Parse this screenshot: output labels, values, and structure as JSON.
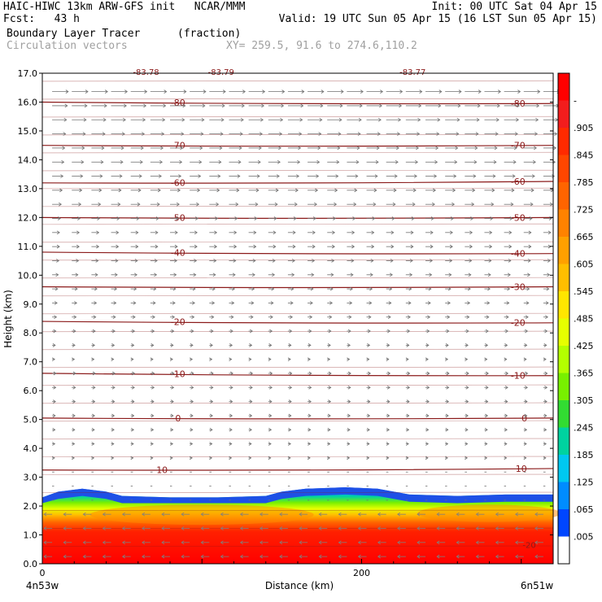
{
  "header": {
    "line1_left": "HAIC-HIWC 13km ARW-GFS init   NCAR/MMM",
    "line1_right": "Init: 00 UTC Sat 04 Apr 15",
    "line2_left": "Fcst:   43 h",
    "line2_right": "Valid: 19 UTC Sun 05 Apr 15 (16 LST Sun 05 Apr 15)",
    "line3_left": "Boundary Layer Tracer",
    "line3_mid": "(fraction)",
    "line4_left": "Circulation vectors",
    "line4_mid": "XY= 259.5, 91.6 to 274.6,110.2"
  },
  "chart_data": {
    "type": "heatmap",
    "title": "Boundary Layer Tracer",
    "units": "(fraction)",
    "xlabel": "Distance (km)",
    "ylabel": "Height (km)",
    "xlim": [
      0,
      320
    ],
    "ylim": [
      0,
      17
    ],
    "x_ticks": [
      {
        "value": 0,
        "label": "0"
      },
      {
        "value": 200,
        "label": "200"
      }
    ],
    "x_end_labels": {
      "left": "4n53w",
      "right": "6n51w"
    },
    "y_ticks": [
      0,
      1,
      2,
      3,
      4,
      5,
      6,
      7,
      8,
      9,
      10,
      11,
      12,
      13,
      14,
      15,
      16,
      17
    ],
    "y_tick_labels": [
      "0.0",
      "1.0",
      "2.0",
      "3.0",
      "4.0",
      "5.0",
      "6.0",
      "7.0",
      "8.0",
      "9.0",
      "10.0",
      "11.0",
      "12.0",
      "13.0",
      "14.0",
      "15.0",
      "16.0",
      "17.0"
    ],
    "colorbar": {
      "labels": [
        "-",
        ".905",
        ".845",
        ".785",
        ".725",
        ".665",
        ".605",
        ".545",
        ".485",
        ".425",
        ".365",
        ".305",
        ".245",
        ".185",
        ".125",
        ".065",
        ".005"
      ],
      "colors": [
        "#ff0000",
        "#f21d1d",
        "#ff2a00",
        "#ff4600",
        "#ff6400",
        "#ff8200",
        "#ffa000",
        "#ffbe00",
        "#ffe600",
        "#e6ff00",
        "#b4ff00",
        "#78f000",
        "#32dc32",
        "#00d2a0",
        "#00c8f0",
        "#008cff",
        "#0046ff",
        "#ffffff"
      ]
    },
    "tracer_profile": [
      {
        "x": 0,
        "top": 2.3
      },
      {
        "x": 10,
        "top": 2.5
      },
      {
        "x": 25,
        "top": 2.6
      },
      {
        "x": 40,
        "top": 2.5
      },
      {
        "x": 50,
        "top": 2.35
      },
      {
        "x": 80,
        "top": 2.3
      },
      {
        "x": 110,
        "top": 2.3
      },
      {
        "x": 140,
        "top": 2.35
      },
      {
        "x": 150,
        "top": 2.5
      },
      {
        "x": 165,
        "top": 2.6
      },
      {
        "x": 190,
        "top": 2.65
      },
      {
        "x": 210,
        "top": 2.6
      },
      {
        "x": 230,
        "top": 2.4
      },
      {
        "x": 260,
        "top": 2.35
      },
      {
        "x": 290,
        "top": 2.4
      },
      {
        "x": 320,
        "top": 2.4
      }
    ],
    "temperature_contours": [
      {
        "value": "10",
        "height": 3.25,
        "slope": 0.05,
        "labels": [
          {
            "x": 75,
            "text": "10"
          },
          {
            "x": 300,
            "text": "10"
          }
        ]
      },
      {
        "value": "0",
        "height": 5.05,
        "slope": 0.0,
        "labels": [
          {
            "x": 85,
            "text": "0"
          },
          {
            "x": 302,
            "text": "0"
          }
        ]
      },
      {
        "value": "-10",
        "height": 6.6,
        "slope": -0.08,
        "labels": [
          {
            "x": 85,
            "text": "-10"
          },
          {
            "x": 298,
            "text": "-10"
          }
        ]
      },
      {
        "value": "-20",
        "height": 8.4,
        "slope": -0.05,
        "labels": [
          {
            "x": 85,
            "text": "-20"
          },
          {
            "x": 298,
            "text": "-20"
          }
        ]
      },
      {
        "value": "-30",
        "height": 9.6,
        "slope": 0.0,
        "labels": [
          {
            "x": 298,
            "text": "-30"
          }
        ]
      },
      {
        "value": "-40",
        "height": 10.8,
        "slope": -0.05,
        "labels": [
          {
            "x": 85,
            "text": "-40"
          },
          {
            "x": 298,
            "text": "-40"
          }
        ]
      },
      {
        "value": "-50",
        "height": 12.0,
        "slope": 0.0,
        "labels": [
          {
            "x": 85,
            "text": "-50"
          },
          {
            "x": 298,
            "text": "-50"
          }
        ]
      },
      {
        "value": "-60",
        "height": 13.2,
        "slope": 0.05,
        "labels": [
          {
            "x": 85,
            "text": "-60"
          },
          {
            "x": 298,
            "text": "-60"
          }
        ]
      },
      {
        "value": "-70",
        "height": 14.5,
        "slope": 0.0,
        "labels": [
          {
            "x": 85,
            "text": "-70"
          },
          {
            "x": 298,
            "text": "-70"
          }
        ]
      },
      {
        "value": "-80",
        "height": 16.0,
        "slope": -0.05,
        "labels": [
          {
            "x": 85,
            "text": "-80"
          },
          {
            "x": 298,
            "text": "-80"
          }
        ]
      }
    ],
    "top_labels": [
      {
        "x": 65,
        "text": "-83.78"
      },
      {
        "x": 112,
        "text": "-83.79"
      },
      {
        "x": 232,
        "text": "-83.77"
      }
    ],
    "extra_labels": [
      {
        "x": 305,
        "y": 0.55,
        "text": "-20"
      }
    ],
    "wind_vectors": {
      "note": "eastward-pointing arrows, longer aloft; westward arrows in boundary layer",
      "columns": 26,
      "rows": 34
    }
  }
}
